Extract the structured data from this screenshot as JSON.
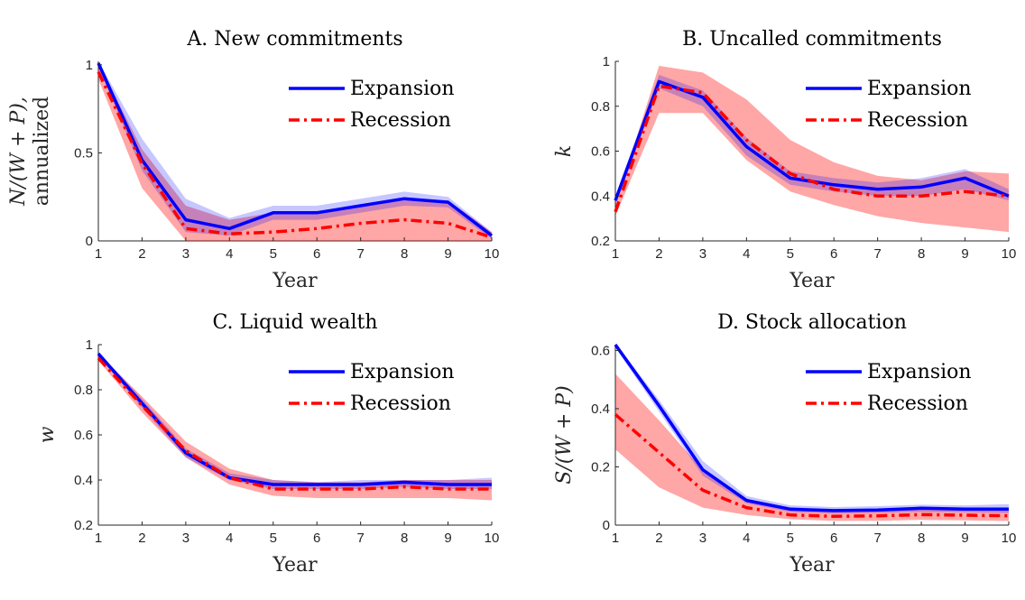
{
  "colors": {
    "expansion": "#0000ff",
    "expansion_band": "#b3b3f5",
    "recession": "#ff0000",
    "recession_band": "#f9a6a6",
    "overlap_band": "#c9a0d6",
    "axis": "#262626"
  },
  "chart_data": [
    {
      "id": "A",
      "type": "line",
      "title": "A. New commitments",
      "xlabel": "Year",
      "ylabel": [
        "N/(W + P),",
        "annualized"
      ],
      "x": [
        1,
        2,
        3,
        4,
        5,
        6,
        7,
        8,
        9,
        10
      ],
      "xlim": [
        1,
        10
      ],
      "ylim": [
        0,
        1.02
      ],
      "yticks": [
        0,
        0.5,
        1
      ],
      "yticklabels": [
        "0",
        "0.5",
        "1"
      ],
      "legend_position": "top-right",
      "series": [
        {
          "name": "Expansion",
          "values": [
            1.01,
            0.46,
            0.12,
            0.07,
            0.16,
            0.16,
            0.2,
            0.24,
            0.22,
            0.03
          ],
          "lower": [
            0.99,
            0.4,
            0.05,
            0.03,
            0.12,
            0.12,
            0.16,
            0.2,
            0.19,
            0.01
          ],
          "upper": [
            1.02,
            0.58,
            0.24,
            0.13,
            0.2,
            0.2,
            0.24,
            0.28,
            0.25,
            0.05
          ]
        },
        {
          "name": "Recession",
          "values": [
            0.96,
            0.44,
            0.07,
            0.04,
            0.05,
            0.07,
            0.1,
            0.12,
            0.1,
            0.02
          ],
          "lower": [
            0.92,
            0.3,
            0.0,
            0.0,
            0.0,
            0.0,
            0.0,
            0.0,
            0.0,
            0.0
          ],
          "upper": [
            1.01,
            0.52,
            0.2,
            0.12,
            0.16,
            0.17,
            0.2,
            0.24,
            0.23,
            0.05
          ]
        }
      ]
    },
    {
      "id": "B",
      "type": "line",
      "title": "B. Uncalled commitments",
      "xlabel": "Year",
      "ylabel": [
        "k"
      ],
      "x": [
        1,
        2,
        3,
        4,
        5,
        6,
        7,
        8,
        9,
        10
      ],
      "xlim": [
        1,
        10
      ],
      "ylim": [
        0.2,
        1
      ],
      "yticks": [
        0.2,
        0.4,
        0.6,
        0.8,
        1
      ],
      "yticklabels": [
        "0.2",
        "0.4",
        "0.6",
        "0.8",
        "1"
      ],
      "legend_position": "top-right",
      "series": [
        {
          "name": "Expansion",
          "values": [
            0.38,
            0.91,
            0.84,
            0.62,
            0.48,
            0.45,
            0.43,
            0.44,
            0.48,
            0.4
          ],
          "lower": [
            0.36,
            0.88,
            0.8,
            0.58,
            0.45,
            0.42,
            0.4,
            0.4,
            0.43,
            0.38
          ],
          "upper": [
            0.4,
            0.94,
            0.87,
            0.66,
            0.51,
            0.48,
            0.46,
            0.48,
            0.52,
            0.43
          ]
        },
        {
          "name": "Recession",
          "values": [
            0.33,
            0.89,
            0.86,
            0.65,
            0.5,
            0.43,
            0.4,
            0.4,
            0.42,
            0.4
          ],
          "lower": [
            0.31,
            0.77,
            0.77,
            0.56,
            0.42,
            0.36,
            0.31,
            0.28,
            0.26,
            0.24
          ],
          "upper": [
            0.36,
            0.98,
            0.95,
            0.83,
            0.65,
            0.55,
            0.49,
            0.47,
            0.51,
            0.5
          ]
        }
      ]
    },
    {
      "id": "C",
      "type": "line",
      "title": "C. Liquid wealth",
      "xlabel": "Year",
      "ylabel": [
        "w"
      ],
      "x": [
        1,
        2,
        3,
        4,
        5,
        6,
        7,
        8,
        9,
        10
      ],
      "xlim": [
        1,
        10
      ],
      "ylim": [
        0.2,
        1
      ],
      "yticks": [
        0.2,
        0.4,
        0.6,
        0.8,
        1
      ],
      "yticklabels": [
        "0.2",
        "0.4",
        "0.6",
        "0.8",
        "1"
      ],
      "legend_position": "top-right",
      "series": [
        {
          "name": "Expansion",
          "values": [
            0.96,
            0.74,
            0.52,
            0.41,
            0.38,
            0.38,
            0.38,
            0.39,
            0.38,
            0.38
          ],
          "lower": [
            0.95,
            0.72,
            0.5,
            0.4,
            0.36,
            0.36,
            0.36,
            0.37,
            0.36,
            0.36
          ],
          "upper": [
            0.97,
            0.76,
            0.54,
            0.43,
            0.4,
            0.39,
            0.4,
            0.4,
            0.4,
            0.41
          ]
        },
        {
          "name": "Recession",
          "values": [
            0.94,
            0.73,
            0.53,
            0.41,
            0.36,
            0.36,
            0.36,
            0.37,
            0.36,
            0.36
          ],
          "lower": [
            0.93,
            0.7,
            0.5,
            0.38,
            0.33,
            0.32,
            0.32,
            0.32,
            0.32,
            0.31
          ],
          "upper": [
            0.96,
            0.77,
            0.57,
            0.45,
            0.4,
            0.39,
            0.39,
            0.4,
            0.4,
            0.4
          ]
        }
      ]
    },
    {
      "id": "D",
      "type": "line",
      "title": "D. Stock allocation",
      "xlabel": "Year",
      "ylabel": [
        "S/(W + P)"
      ],
      "x": [
        1,
        2,
        3,
        4,
        5,
        6,
        7,
        8,
        9,
        10
      ],
      "xlim": [
        1,
        10
      ],
      "ylim": [
        0,
        0.62
      ],
      "yticks": [
        0,
        0.2,
        0.4,
        0.6
      ],
      "yticklabels": [
        "0",
        "0.2",
        "0.4",
        "0.6"
      ],
      "legend_position": "top-right",
      "series": [
        {
          "name": "Expansion",
          "values": [
            0.62,
            0.41,
            0.19,
            0.085,
            0.055,
            0.05,
            0.052,
            0.058,
            0.055,
            0.055
          ],
          "lower": [
            0.61,
            0.39,
            0.17,
            0.075,
            0.045,
            0.04,
            0.042,
            0.046,
            0.044,
            0.042
          ],
          "upper": [
            0.625,
            0.43,
            0.22,
            0.1,
            0.068,
            0.062,
            0.065,
            0.07,
            0.068,
            0.072
          ]
        },
        {
          "name": "Recession",
          "values": [
            0.38,
            0.25,
            0.12,
            0.06,
            0.035,
            0.03,
            0.032,
            0.036,
            0.034,
            0.032
          ],
          "lower": [
            0.26,
            0.13,
            0.06,
            0.035,
            0.02,
            0.015,
            0.015,
            0.018,
            0.016,
            0.014
          ],
          "upper": [
            0.52,
            0.36,
            0.19,
            0.09,
            0.06,
            0.052,
            0.055,
            0.058,
            0.057,
            0.056
          ]
        }
      ]
    }
  ]
}
